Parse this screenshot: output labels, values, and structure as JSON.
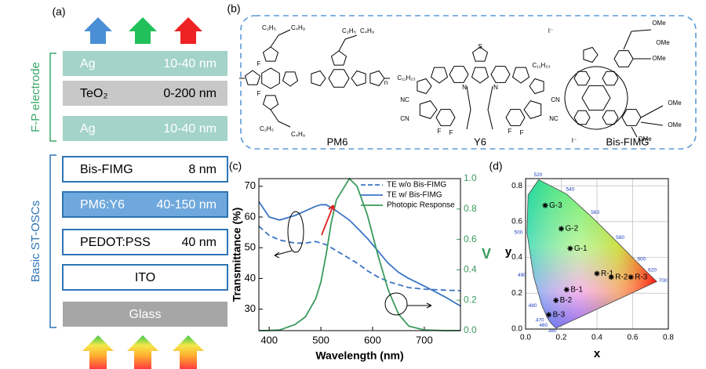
{
  "panel_labels": [
    "(a)",
    "(b)",
    "(c)",
    "(d)"
  ],
  "device_stack": {
    "electrode_label": "F-P electrode",
    "cell_label": "Basic ST-OSCs",
    "layers": [
      {
        "name": "Ag",
        "thickness": "10-40 nm"
      },
      {
        "name": "TeO₂",
        "thickness": "0-200 nm"
      },
      {
        "name": "Ag",
        "thickness": "10-40 nm"
      },
      {
        "name": "Bis-FIMG",
        "thickness": "8 nm"
      },
      {
        "name": "PM6:Y6",
        "thickness": "40-150 nm"
      },
      {
        "name": "PEDOT:PSS",
        "thickness": "40 nm"
      },
      {
        "name": "ITO"
      },
      {
        "name": "Glass"
      }
    ]
  },
  "molecules": [
    {
      "name": "PM6",
      "atoms": [
        "C₂H₅",
        "C₄H₉",
        "C₂H₅",
        "C₄H₉",
        "C₂H₅",
        "C₄H₉",
        "F",
        "F",
        "n"
      ]
    },
    {
      "name": "Y6",
      "atoms": [
        "C₁₁H₂₃",
        "C₁₁H₂₃",
        "NC",
        "CN",
        "CN",
        "NC",
        "F",
        "F",
        "F",
        "F",
        "S",
        "N",
        "N"
      ]
    },
    {
      "name": "Bis-FIMG",
      "atoms": [
        "I⁻",
        "OMe",
        "OMe",
        "OMe",
        "OMe",
        "OMe",
        "OMe",
        "I⁻"
      ]
    }
  ],
  "chart_data": [
    {
      "type": "line",
      "x_label": "Wavelength (nm)",
      "y_label": "Transmittance (%)",
      "y2_label": "V",
      "x": [
        380,
        400,
        420,
        450,
        470,
        490,
        500,
        510,
        520,
        530,
        555,
        570,
        590,
        610,
        630,
        650,
        670,
        700,
        740,
        770
      ],
      "series": [
        {
          "name": "TE w/o Bis-FIMG",
          "color": "#3b75c4",
          "line_style": "dashed",
          "values": [
            57,
            54,
            52.5,
            51.5,
            51.5,
            52,
            51.5,
            51,
            50,
            49,
            46.5,
            45,
            42.5,
            40.5,
            39,
            38,
            37,
            36.5,
            36.2,
            36
          ]
        },
        {
          "name": "TE w/ Bis-FIMG",
          "color": "#3b75c4",
          "line_style": "solid",
          "values": [
            65,
            60,
            59,
            60.5,
            62,
            63.5,
            64,
            64,
            63,
            62,
            59,
            56.5,
            53,
            49,
            45,
            42,
            40,
            37.5,
            34,
            31
          ]
        },
        {
          "name": "Photopic Response",
          "color": "#3a9a5e",
          "line_style": "solid",
          "axis": "y2",
          "values": [
            0,
            0.001,
            0.004,
            0.04,
            0.09,
            0.21,
            0.32,
            0.5,
            0.71,
            0.86,
            1.0,
            0.95,
            0.76,
            0.5,
            0.27,
            0.11,
            0.03,
            0.004,
            0,
            0
          ]
        }
      ],
      "xlim": [
        380,
        770
      ],
      "ylim": [
        23,
        72.5
      ],
      "y2lim": [
        0,
        1
      ],
      "xticks": [
        400,
        500,
        600,
        700
      ],
      "yticks": [
        30,
        40,
        50,
        60,
        70
      ],
      "y2ticks": [
        {
          "value": 0,
          "label": "0.0"
        },
        0.2,
        0.4,
        0.6,
        0.8,
        {
          "value": 1,
          "label": "1.0"
        }
      ],
      "legend": "upper right"
    },
    {
      "type": "scatter",
      "x_label": "x",
      "y_label": "y",
      "point_labels": [
        "G-3",
        "G-2",
        "G-1",
        "R-1",
        "R-2",
        "R-3",
        "B-1",
        "B-2",
        "B-3"
      ],
      "x": [
        0.11,
        0.2,
        0.25,
        0.4,
        0.48,
        0.59,
        0.23,
        0.17,
        0.13
      ],
      "values": [
        0.69,
        0.56,
        0.45,
        0.31,
        0.29,
        0.29,
        0.22,
        0.16,
        0.08
      ],
      "color": "#000000",
      "locus_labels": [
        "520",
        "540",
        "560",
        "580",
        "600",
        "620",
        "700",
        "500",
        "490",
        "480",
        "470",
        "460",
        "380"
      ],
      "xlim": [
        0,
        0.8
      ],
      "ylim": [
        0,
        0.84
      ],
      "xticks": [
        {
          "value": 0,
          "label": "0.0"
        },
        0.2,
        0.4,
        0.6,
        0.8
      ],
      "yticks": [
        {
          "value": 0,
          "label": "0.0"
        },
        0.2,
        0.4,
        0.6,
        0.8
      ],
      "grid": true
    }
  ]
}
